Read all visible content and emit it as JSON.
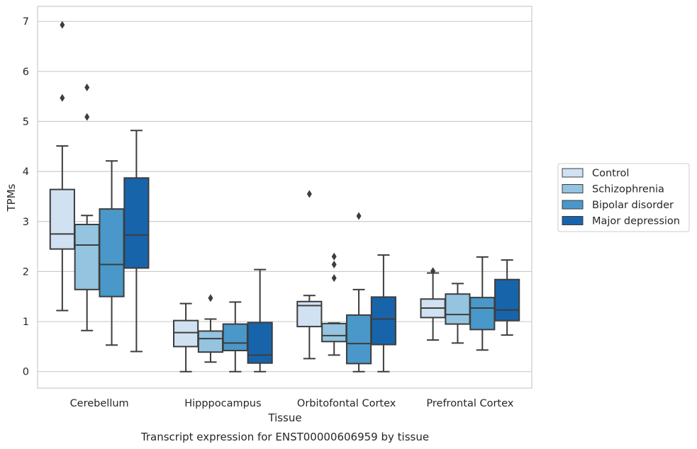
{
  "chart_data": {
    "type": "box",
    "title": "",
    "caption": "Transcript expression for ENST00000606959 by tissue",
    "xlabel": "Tissue",
    "ylabel": "TPMs",
    "ylim": [
      -0.33,
      7.3
    ],
    "yticks": [
      0,
      1,
      2,
      3,
      4,
      5,
      6,
      7
    ],
    "grid": true,
    "legend_position": "right",
    "categories": [
      "Cerebellum",
      "Hipppocampus",
      "Orbitofontal Cortex",
      "Prefrontal Cortex"
    ],
    "series": [
      {
        "name": "Control",
        "color": "#d0e1f2",
        "boxes": [
          {
            "whisker_low": 1.22,
            "q1": 2.45,
            "median": 2.75,
            "q3": 3.64,
            "whisker_high": 4.51,
            "outliers": [
              6.93,
              5.47
            ]
          },
          {
            "whisker_low": 0.0,
            "q1": 0.5,
            "median": 0.78,
            "q3": 1.02,
            "whisker_high": 1.36,
            "outliers": []
          },
          {
            "whisker_low": 0.26,
            "q1": 0.9,
            "median": 1.32,
            "q3": 1.4,
            "whisker_high": 1.52,
            "outliers": [
              3.55
            ]
          },
          {
            "whisker_low": 0.63,
            "q1": 1.08,
            "median": 1.27,
            "q3": 1.45,
            "whisker_high": 1.97,
            "outliers": [
              2.01
            ]
          }
        ]
      },
      {
        "name": "Schizophrenia",
        "color": "#94c4df",
        "boxes": [
          {
            "whisker_low": 0.82,
            "q1": 1.64,
            "median": 2.53,
            "q3": 2.94,
            "whisker_high": 3.12,
            "outliers": [
              5.68,
              5.09
            ]
          },
          {
            "whisker_low": 0.19,
            "q1": 0.39,
            "median": 0.66,
            "q3": 0.81,
            "whisker_high": 1.05,
            "outliers": [
              1.47
            ]
          },
          {
            "whisker_low": 0.33,
            "q1": 0.6,
            "median": 0.72,
            "q3": 0.96,
            "whisker_high": 0.97,
            "outliers": [
              2.3,
              2.14,
              1.87
            ]
          },
          {
            "whisker_low": 0.57,
            "q1": 0.95,
            "median": 1.14,
            "q3": 1.55,
            "whisker_high": 1.76,
            "outliers": []
          }
        ]
      },
      {
        "name": "Bipolar disorder",
        "color": "#4a98c9",
        "boxes": [
          {
            "whisker_low": 0.53,
            "q1": 1.5,
            "median": 2.14,
            "q3": 3.25,
            "whisker_high": 4.21,
            "outliers": []
          },
          {
            "whisker_low": 0.0,
            "q1": 0.42,
            "median": 0.57,
            "q3": 0.95,
            "whisker_high": 1.39,
            "outliers": []
          },
          {
            "whisker_low": 0.0,
            "q1": 0.16,
            "median": 0.56,
            "q3": 1.13,
            "whisker_high": 1.64,
            "outliers": [
              3.11
            ]
          },
          {
            "whisker_low": 0.43,
            "q1": 0.84,
            "median": 1.27,
            "q3": 1.48,
            "whisker_high": 2.29,
            "outliers": []
          }
        ]
      },
      {
        "name": "Major depression",
        "color": "#1764ab",
        "boxes": [
          {
            "whisker_low": 0.4,
            "q1": 2.07,
            "median": 2.73,
            "q3": 3.87,
            "whisker_high": 4.82,
            "outliers": []
          },
          {
            "whisker_low": 0.0,
            "q1": 0.17,
            "median": 0.33,
            "q3": 0.98,
            "whisker_high": 2.04,
            "outliers": []
          },
          {
            "whisker_low": 0.0,
            "q1": 0.54,
            "median": 1.05,
            "q3": 1.49,
            "whisker_high": 2.33,
            "outliers": []
          },
          {
            "whisker_low": 0.73,
            "q1": 1.02,
            "median": 1.23,
            "q3": 1.84,
            "whisker_high": 2.23,
            "outliers": []
          }
        ]
      }
    ]
  }
}
